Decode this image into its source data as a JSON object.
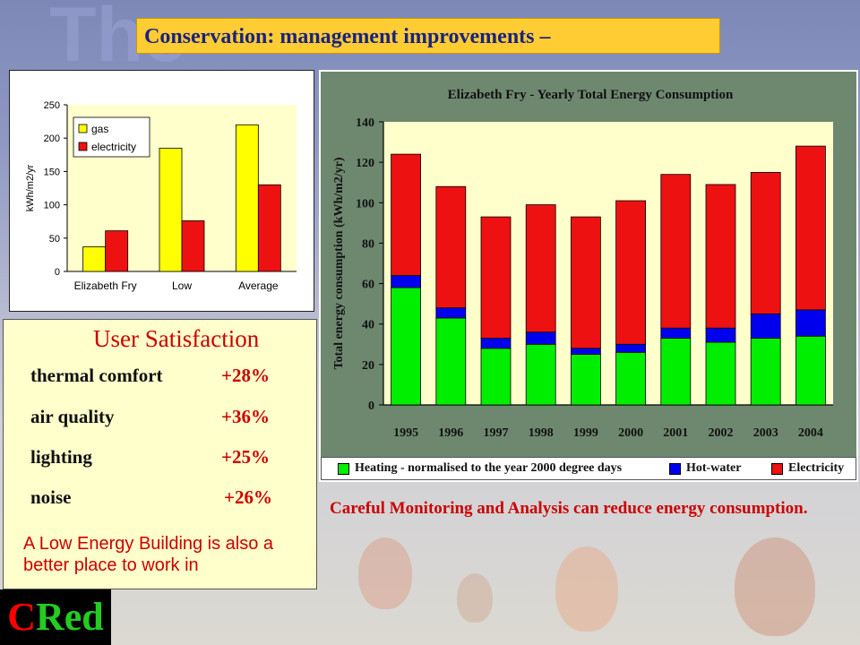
{
  "title": "Conservation: management improvements –",
  "logo": {
    "first": "C",
    "rest": "Red"
  },
  "satisfaction": {
    "heading": "User Satisfaction",
    "rows": [
      {
        "label": "thermal comfort",
        "value": "+28%"
      },
      {
        "label": "air quality",
        "value": "+36%"
      },
      {
        "label": "lighting",
        "value": "+25%"
      },
      {
        "label": "noise",
        "value": "+26%"
      }
    ],
    "note": "A Low Energy Building is also a better place to work in"
  },
  "caption": "Careful Monitoring and Analysis can reduce energy consumption.",
  "colors": {
    "gas": "#ffff00",
    "electricity": "#ee1111",
    "heating": "#00ee00",
    "hotwater": "#0000ee",
    "title_box": "#ffcc33",
    "accent_red": "#cc0000"
  },
  "chart_data": [
    {
      "type": "bar",
      "title": "",
      "xlabel": "",
      "ylabel": "kWh/m2/yr",
      "ylim": [
        0,
        250
      ],
      "yticks": [
        0,
        50,
        100,
        150,
        200,
        250
      ],
      "categories": [
        "Elizabeth Fry",
        "Low",
        "Average"
      ],
      "series": [
        {
          "name": "gas",
          "values": [
            37,
            185,
            220
          ]
        },
        {
          "name": "electricity",
          "values": [
            61,
            76,
            130
          ]
        }
      ],
      "legend": "top-left",
      "grid": false
    },
    {
      "type": "bar",
      "stacked": true,
      "title": "Elizabeth Fry - Yearly Total Energy Consumption",
      "xlabel": "",
      "ylabel": "Total energy consumption (kWh/m2/yr)",
      "ylim": [
        0,
        140
      ],
      "yticks": [
        0,
        20,
        40,
        60,
        80,
        100,
        120,
        140
      ],
      "categories": [
        "1995",
        "1996",
        "1997",
        "1998",
        "1999",
        "2000",
        "2001",
        "2002",
        "2003",
        "2004"
      ],
      "series": [
        {
          "name": "Heating - normalised to the year 2000 degree days",
          "values": [
            58,
            43,
            28,
            30,
            25,
            26,
            33,
            31,
            33,
            34
          ]
        },
        {
          "name": "Hot-water",
          "values": [
            6,
            5,
            5,
            6,
            3,
            4,
            5,
            7,
            12,
            13
          ]
        },
        {
          "name": "Electricity",
          "values": [
            60,
            60,
            60,
            63,
            65,
            71,
            76,
            71,
            70,
            81
          ]
        }
      ],
      "legend": "bottom",
      "grid": false
    }
  ]
}
